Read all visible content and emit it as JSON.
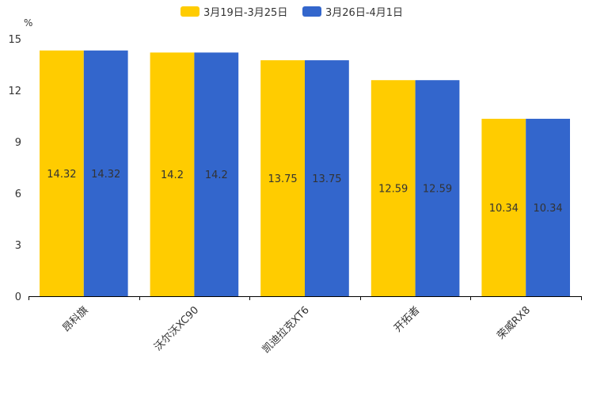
{
  "chart_data": {
    "type": "bar",
    "title": "",
    "xlabel": "",
    "ylabel": "%",
    "ylim": [
      0,
      15
    ],
    "yticks": [
      0,
      3,
      6,
      9,
      12,
      15
    ],
    "grid": false,
    "legend_position": "top-center",
    "categories": [
      "昂科旗",
      "沃尔沃XC90",
      "凯迪拉克XT6",
      "开拓者",
      "荣威RX8"
    ],
    "series": [
      {
        "name": "3月19日-3月25日",
        "color": "#FFCC00",
        "values": [
          14.32,
          14.2,
          13.75,
          12.59,
          10.34
        ]
      },
      {
        "name": "3月26日-4月1日",
        "color": "#3366CC",
        "values": [
          14.32,
          14.2,
          13.75,
          12.59,
          10.34
        ]
      }
    ]
  }
}
